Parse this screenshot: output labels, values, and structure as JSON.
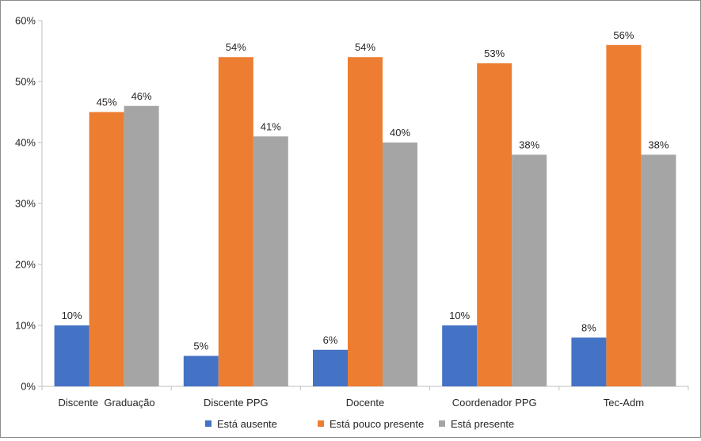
{
  "chart_data": {
    "type": "bar",
    "categories": [
      "Discente  Graduação",
      "Discente PPG",
      "Docente",
      "Coordenador PPG",
      "Tec-Adm"
    ],
    "series": [
      {
        "name": "Está ausente",
        "color": "#4472c4",
        "values": [
          10,
          5,
          6,
          10,
          8
        ],
        "labels": [
          "10%",
          "5%",
          "6%",
          "10%",
          "8%"
        ]
      },
      {
        "name": "Está pouco presente",
        "color": "#ed7d31",
        "values": [
          45,
          54,
          54,
          53,
          56
        ],
        "labels": [
          "45%",
          "54%",
          "54%",
          "53%",
          "56%"
        ]
      },
      {
        "name": "Está presente",
        "color": "#a5a5a5",
        "values": [
          46,
          41,
          40,
          38,
          38
        ],
        "labels": [
          "46%",
          "41%",
          "40%",
          "38%",
          "38%"
        ]
      }
    ],
    "ylim": [
      0,
      60
    ],
    "yticks": [
      0,
      10,
      20,
      30,
      40,
      50,
      60
    ],
    "ytick_labels": [
      "0%",
      "10%",
      "20%",
      "30%",
      "40%",
      "50%",
      "60%"
    ],
    "grid": false,
    "legend": "bottom",
    "title": "",
    "xlabel": "",
    "ylabel": ""
  }
}
